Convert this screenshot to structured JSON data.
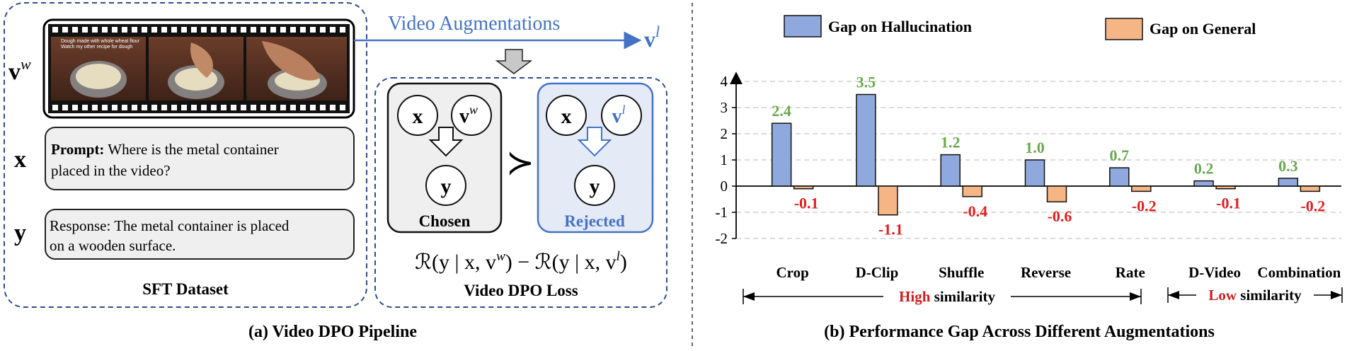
{
  "left_panel": {
    "caption": "(a) Video DPO Pipeline",
    "augment_label": "Video Augmentations",
    "vw_label": "v",
    "vw_sup": "w",
    "vl_label": "v",
    "vl_sup": "l",
    "x_label": "x",
    "y_label": "y",
    "video_overlay_1": "Dough made with whole wheat flour",
    "video_overlay_2": "Watch my other recipe for dough",
    "prompt_bold": "Prompt:",
    "prompt_line1": " Where is the metal container",
    "prompt_line2": "placed in the video?",
    "response_line1": "Response: The metal container is placed",
    "response_line2": "on a wooden surface.",
    "sft_caption": "SFT Dataset",
    "chosen_label": "Chosen",
    "rejected_label": "Rejected",
    "better_symbol": "≻",
    "loss_caption": "Video  DPO Loss",
    "loss_formula_left": "ℛ(y | x, v",
    "loss_sup_w": "w",
    "loss_mid": ") − ℛ(y | x, v",
    "loss_sup_l": "l",
    "loss_end": ")"
  },
  "right_panel": {
    "caption": "(b) Performance Gap Across Different Augmentations",
    "high_sim_colored": "High",
    "low_sim_colored": "Low",
    "similarity_word": "similarity"
  },
  "colors": {
    "hallucination_fill": "#8fa8de",
    "general_fill": "#f5b585",
    "positive_label": "#6aa84f",
    "negative_label": "#e02020",
    "accent_blue": "#4472c4",
    "dash_blue": "#2e4d8c"
  },
  "chart_data": {
    "type": "bar",
    "title": "",
    "xlabel": "",
    "ylabel": "",
    "ylim": [
      -2,
      4
    ],
    "yticks": [
      "-2",
      "-1",
      "0",
      "1",
      "2",
      "3",
      "4"
    ],
    "categories": [
      "Crop",
      "D-Clip",
      "Shuffle",
      "Reverse",
      "Rate",
      "D-Video",
      "Combination"
    ],
    "series": [
      {
        "name": "Gap on Hallucination",
        "values": [
          2.4,
          3.5,
          1.2,
          1.0,
          0.7,
          0.2,
          0.3
        ],
        "labels": [
          "2.4",
          "3.5",
          "1.2",
          "1.0",
          "0.7",
          "0.2",
          "0.3"
        ]
      },
      {
        "name": "Gap on General",
        "values": [
          -0.1,
          -1.1,
          -0.4,
          -0.6,
          -0.2,
          -0.1,
          -0.2
        ],
        "labels": [
          "-0.1",
          "-1.1",
          "-0.4",
          "-0.6",
          "-0.2",
          "-0.1",
          "-0.2"
        ]
      }
    ],
    "legend": "top",
    "grid": true
  }
}
